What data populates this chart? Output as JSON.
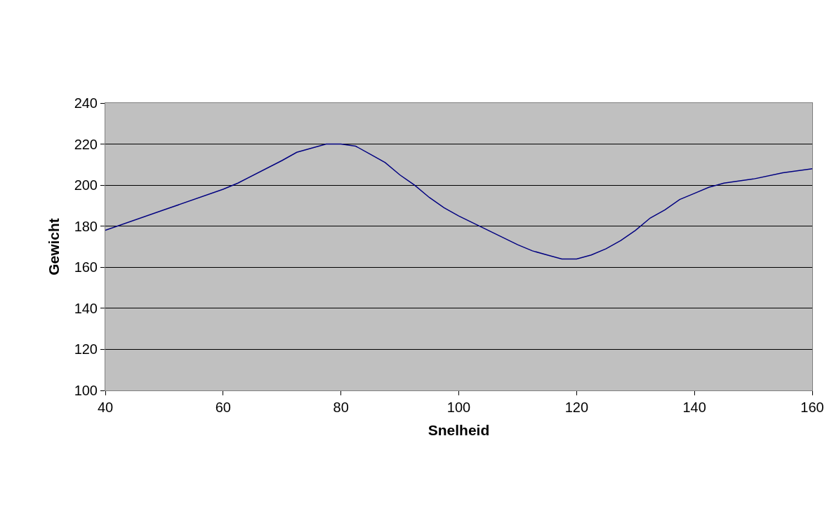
{
  "chart_data": {
    "type": "line",
    "xlabel": "Snelheid",
    "ylabel": "Gewicht",
    "x": [
      40,
      50,
      60,
      62.5,
      70,
      72.5,
      77.5,
      80,
      82.5,
      85,
      87.5,
      90,
      92.5,
      95,
      97.5,
      100,
      105,
      110,
      112.5,
      115,
      117.5,
      120,
      122.5,
      125,
      127.5,
      130,
      132.5,
      135,
      137.5,
      140,
      142.5,
      145,
      150,
      155,
      160
    ],
    "series": [
      {
        "color": "#000080",
        "values": [
          178,
          188,
          198,
          201,
          212,
          216,
          220,
          220,
          219,
          215,
          211,
          205,
          200,
          194,
          189,
          185,
          178,
          171,
          168,
          166,
          164,
          164,
          166,
          169,
          173,
          178,
          184,
          188,
          193,
          196,
          199,
          201,
          203,
          206,
          208
        ]
      }
    ],
    "xlim": [
      40,
      160
    ],
    "xticks": [
      40,
      60,
      80,
      100,
      120,
      140,
      160
    ],
    "ylim": [
      100,
      240
    ],
    "yticks": [
      100,
      120,
      140,
      160,
      180,
      200,
      220,
      240
    ],
    "grid": "y",
    "legend": false,
    "marker": "none",
    "line_style": "solid"
  }
}
